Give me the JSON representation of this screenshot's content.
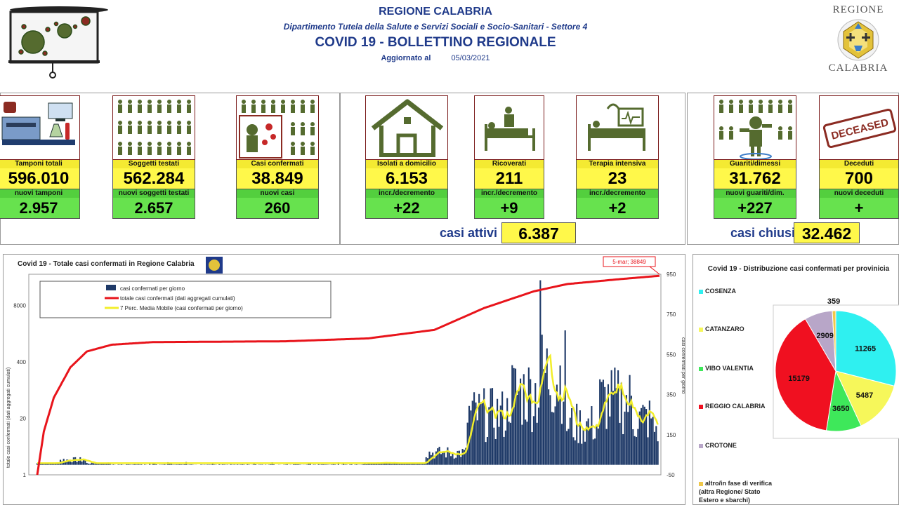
{
  "header": {
    "region": "REGIONE CALABRIA",
    "department": "Dipartimento Tutela della Salute e Servizi Sociali e Socio-Sanitari - Settore 4",
    "bulletin": "COVID 19 - BOLLETTINO REGIONALE",
    "updated_label": "Aggiornato al",
    "updated_date": "05/03/2021"
  },
  "logo": {
    "line1": "REGIONE",
    "line2": "CALABRIA"
  },
  "cards": [
    {
      "label": "Tamponi totali",
      "value": "596.010",
      "label2": "nuovi tamponi",
      "value2": "2.957"
    },
    {
      "label": "Soggetti testati",
      "value": "562.284",
      "label2": "nuovi soggetti testati",
      "value2": "2.657"
    },
    {
      "label": "Casi confermati",
      "value": "38.849",
      "label2": "nuovi casi",
      "value2": "260"
    },
    {
      "label": "Isolati a domicilio",
      "value": "6.153",
      "label2": "incr./decremento",
      "value2": "+22"
    },
    {
      "label": "Ricoverati",
      "value": "211",
      "label2": "incr./decremento",
      "value2": "+9"
    },
    {
      "label": "Terapia intensiva",
      "value": "23",
      "label2": "incr./decremento",
      "value2": "+2"
    },
    {
      "label": "Guariti/dimessi",
      "value": "31.762",
      "label2": "nuovi guariti/dim.",
      "value2": "+227"
    },
    {
      "label": "Deceduti",
      "value": "700",
      "label2": "nuovi deceduti",
      "value2": "+"
    }
  ],
  "casi_attivi": {
    "label": "casi attivi",
    "value": "6.387"
  },
  "casi_chiusi": {
    "label": "casi chiusi",
    "value": "32.462"
  },
  "deceased_stamp": "DECEASED",
  "colors": {
    "bar": "#1f3a68",
    "cumulative": "#e8141b",
    "moving_avg": "#f2ee2a",
    "header_blue": "#1f3a8a"
  },
  "chart_data": [
    {
      "type": "bar",
      "title": "Covid 19 - Totale casi confermati in Regione Calabria",
      "annotation": "5-mar; 38849",
      "left_axis_label": "totale casi confermati (dati aggregati cumulati)",
      "right_axis_label": "casi confermati per giorno",
      "left_ticks": [
        "8000",
        "400",
        "20",
        "1"
      ],
      "right_ticks": [
        "950",
        "750",
        "550",
        "350",
        "150",
        "-50"
      ],
      "right_ylim": [
        -50,
        950
      ],
      "log_left_axis": true,
      "legend": [
        "casi confermati per giorno",
        "totale casi confermati (dati aggregati cumulati)",
        "7 Perc. Media Mobile (casi confermati per giorno)"
      ],
      "phases": [
        {
          "day_from": 0,
          "day_to": 14,
          "daily_level": 8
        },
        {
          "day_from": 14,
          "day_to": 30,
          "daily_level": 25
        },
        {
          "day_from": 30,
          "day_to": 45,
          "daily_level": 8
        },
        {
          "day_from": 45,
          "day_to": 200,
          "daily_level": 2
        },
        {
          "day_from": 200,
          "day_to": 235,
          "daily_level": 8
        },
        {
          "day_from": 235,
          "day_to": 260,
          "daily_level": 60
        },
        {
          "day_from": 260,
          "day_to": 285,
          "daily_level": 250
        },
        {
          "day_from": 285,
          "day_to": 305,
          "daily_level": 360
        },
        {
          "day_from": 305,
          "day_to": 320,
          "daily_level": 450
        },
        {
          "day_from": 320,
          "day_to": 340,
          "daily_level": 200
        },
        {
          "day_from": 340,
          "day_to": 360,
          "daily_level": 320
        },
        {
          "day_from": 360,
          "day_to": 372,
          "daily_level": 230
        },
        {
          "day_from": 372,
          "day_to": 376,
          "daily_level": 180
        }
      ],
      "peak_day": {
        "day": 304,
        "value": 920
      },
      "cumulative_points": [
        {
          "day": 0,
          "value": 1
        },
        {
          "day": 4,
          "value": 10
        },
        {
          "day": 10,
          "value": 60
        },
        {
          "day": 20,
          "value": 300
        },
        {
          "day": 30,
          "value": 700
        },
        {
          "day": 45,
          "value": 1000
        },
        {
          "day": 70,
          "value": 1150
        },
        {
          "day": 150,
          "value": 1200
        },
        {
          "day": 200,
          "value": 1400
        },
        {
          "day": 240,
          "value": 2200
        },
        {
          "day": 270,
          "value": 7000
        },
        {
          "day": 300,
          "value": 17000
        },
        {
          "day": 320,
          "value": 25000
        },
        {
          "day": 350,
          "value": 32000
        },
        {
          "day": 376,
          "value": 38849
        }
      ],
      "total_days": 376
    },
    {
      "type": "pie",
      "title": "Covid 19 - Distribuzione casi confermati per provinicia",
      "categories": [
        "COSENZA",
        "CATANZARO",
        "VIBO VALENTIA",
        "REGGIO CALABRIA",
        "CROTONE",
        "altro/in fase di verifica (altra Regione/ Stato Estero e sbarchi)"
      ],
      "values": [
        11265,
        5487,
        3650,
        15179,
        2909,
        359
      ],
      "colors": [
        "#2ff0f0",
        "#f6f75a",
        "#3ee85a",
        "#f01020",
        "#b8a6c8",
        "#f0c84a"
      ]
    }
  ]
}
